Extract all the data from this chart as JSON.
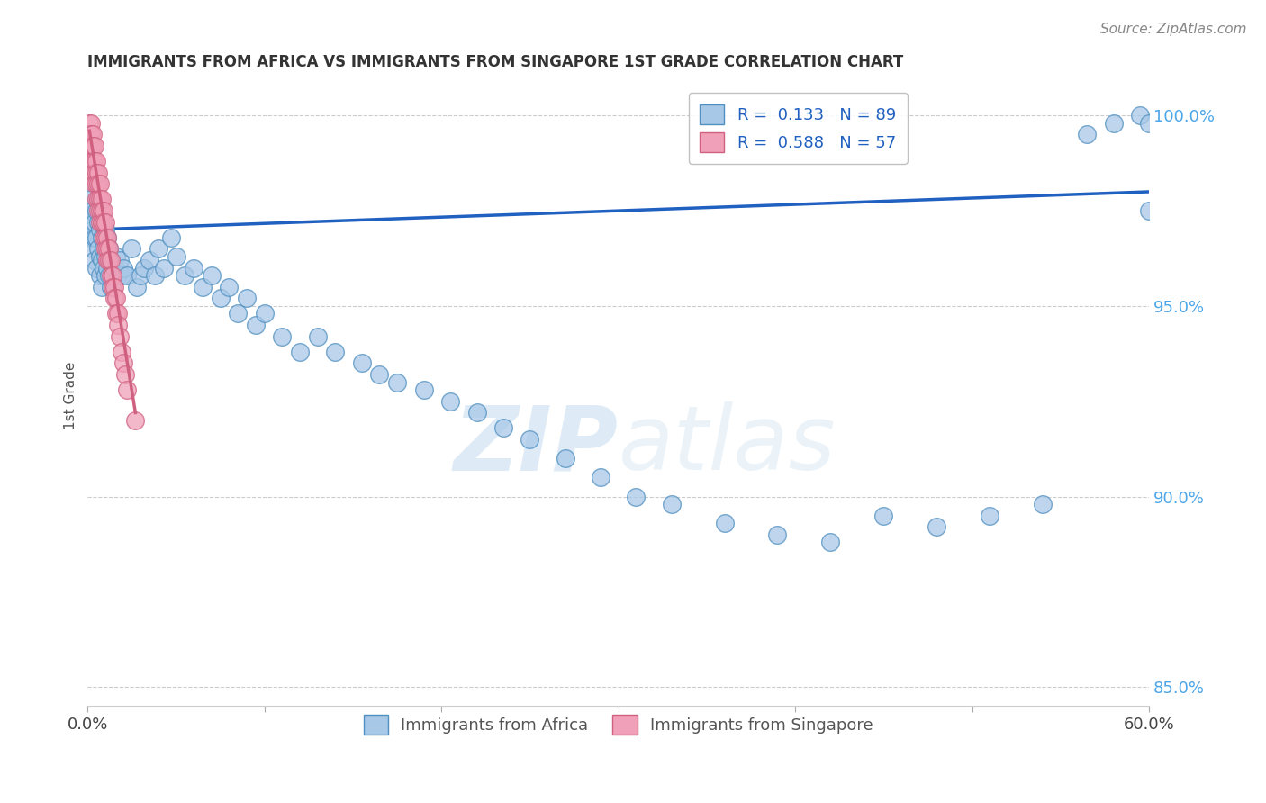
{
  "title": "IMMIGRANTS FROM AFRICA VS IMMIGRANTS FROM SINGAPORE 1ST GRADE CORRELATION CHART",
  "source_text": "Source: ZipAtlas.com",
  "ylabel": "1st Grade",
  "legend_label_blue": "Immigrants from Africa",
  "legend_label_pink": "Immigrants from Singapore",
  "R_blue": "0.133",
  "N_blue": "89",
  "R_pink": "0.588",
  "N_pink": "57",
  "blue_color": "#a8c8e8",
  "blue_edge": "#5090c0",
  "pink_color": "#f0a0b8",
  "pink_edge": "#d06080",
  "trend_blue_color": "#2060c0",
  "trend_pink_color": "#d06080",
  "xlim": [
    0.0,
    0.6
  ],
  "ylim": [
    0.845,
    1.008
  ],
  "x_ticks": [
    0.0,
    0.1,
    0.2,
    0.3,
    0.4,
    0.5,
    0.6
  ],
  "x_tick_labels": [
    "0.0%",
    "",
    "",
    "",
    "",
    "",
    "60.0%"
  ],
  "y_ticks_right": [
    0.85,
    0.9,
    0.95,
    1.0
  ],
  "y_tick_labels_right": [
    "85.0%",
    "90.0%",
    "95.0%",
    "100.0%"
  ],
  "watermark_zip": "ZIP",
  "watermark_atlas": "atlas",
  "blue_x": [
    0.001,
    0.001,
    0.002,
    0.002,
    0.002,
    0.003,
    0.003,
    0.003,
    0.004,
    0.004,
    0.004,
    0.005,
    0.005,
    0.005,
    0.006,
    0.006,
    0.007,
    0.007,
    0.007,
    0.008,
    0.008,
    0.008,
    0.009,
    0.009,
    0.01,
    0.01,
    0.01,
    0.011,
    0.011,
    0.012,
    0.012,
    0.013,
    0.013,
    0.014,
    0.015,
    0.016,
    0.017,
    0.018,
    0.019,
    0.02,
    0.022,
    0.025,
    0.028,
    0.03,
    0.032,
    0.035,
    0.038,
    0.04,
    0.043,
    0.047,
    0.05,
    0.055,
    0.06,
    0.065,
    0.07,
    0.075,
    0.08,
    0.085,
    0.09,
    0.095,
    0.1,
    0.11,
    0.12,
    0.13,
    0.14,
    0.155,
    0.165,
    0.175,
    0.19,
    0.205,
    0.22,
    0.235,
    0.25,
    0.27,
    0.29,
    0.31,
    0.33,
    0.36,
    0.39,
    0.42,
    0.45,
    0.48,
    0.51,
    0.54,
    0.565,
    0.58,
    0.595,
    0.6,
    0.6
  ],
  "blue_y": [
    0.98,
    0.975,
    0.978,
    0.972,
    0.968,
    0.975,
    0.97,
    0.965,
    0.972,
    0.968,
    0.962,
    0.975,
    0.968,
    0.96,
    0.972,
    0.965,
    0.97,
    0.963,
    0.958,
    0.968,
    0.962,
    0.955,
    0.965,
    0.96,
    0.97,
    0.963,
    0.958,
    0.968,
    0.96,
    0.965,
    0.958,
    0.962,
    0.955,
    0.958,
    0.96,
    0.963,
    0.958,
    0.962,
    0.958,
    0.96,
    0.958,
    0.965,
    0.955,
    0.958,
    0.96,
    0.962,
    0.958,
    0.965,
    0.96,
    0.968,
    0.963,
    0.958,
    0.96,
    0.955,
    0.958,
    0.952,
    0.955,
    0.948,
    0.952,
    0.945,
    0.948,
    0.942,
    0.938,
    0.942,
    0.938,
    0.935,
    0.932,
    0.93,
    0.928,
    0.925,
    0.922,
    0.918,
    0.915,
    0.91,
    0.905,
    0.9,
    0.898,
    0.893,
    0.89,
    0.888,
    0.895,
    0.892,
    0.895,
    0.898,
    0.995,
    0.998,
    1.0,
    0.998,
    0.975
  ],
  "pink_x": [
    0.001,
    0.001,
    0.001,
    0.002,
    0.002,
    0.002,
    0.002,
    0.003,
    0.003,
    0.003,
    0.003,
    0.004,
    0.004,
    0.004,
    0.004,
    0.005,
    0.005,
    0.005,
    0.005,
    0.006,
    0.006,
    0.006,
    0.006,
    0.007,
    0.007,
    0.007,
    0.007,
    0.008,
    0.008,
    0.008,
    0.009,
    0.009,
    0.009,
    0.01,
    0.01,
    0.01,
    0.011,
    0.011,
    0.011,
    0.012,
    0.012,
    0.013,
    0.013,
    0.014,
    0.014,
    0.015,
    0.015,
    0.016,
    0.016,
    0.017,
    0.017,
    0.018,
    0.019,
    0.02,
    0.021,
    0.022,
    0.027
  ],
  "pink_y": [
    0.998,
    0.995,
    0.992,
    0.998,
    0.995,
    0.992,
    0.988,
    0.995,
    0.992,
    0.988,
    0.985,
    0.992,
    0.988,
    0.985,
    0.982,
    0.988,
    0.985,
    0.982,
    0.978,
    0.985,
    0.982,
    0.978,
    0.975,
    0.982,
    0.978,
    0.975,
    0.972,
    0.978,
    0.975,
    0.972,
    0.975,
    0.972,
    0.968,
    0.972,
    0.968,
    0.965,
    0.968,
    0.965,
    0.962,
    0.965,
    0.962,
    0.962,
    0.958,
    0.958,
    0.955,
    0.955,
    0.952,
    0.952,
    0.948,
    0.948,
    0.945,
    0.942,
    0.938,
    0.935,
    0.932,
    0.928,
    0.92
  ],
  "trend_blue_x0": 0.0,
  "trend_blue_y0": 0.97,
  "trend_blue_x1": 0.6,
  "trend_blue_y1": 0.98,
  "trend_pink_x0": 0.001,
  "trend_pink_y0": 0.996,
  "trend_pink_x1": 0.027,
  "trend_pink_y1": 0.922
}
